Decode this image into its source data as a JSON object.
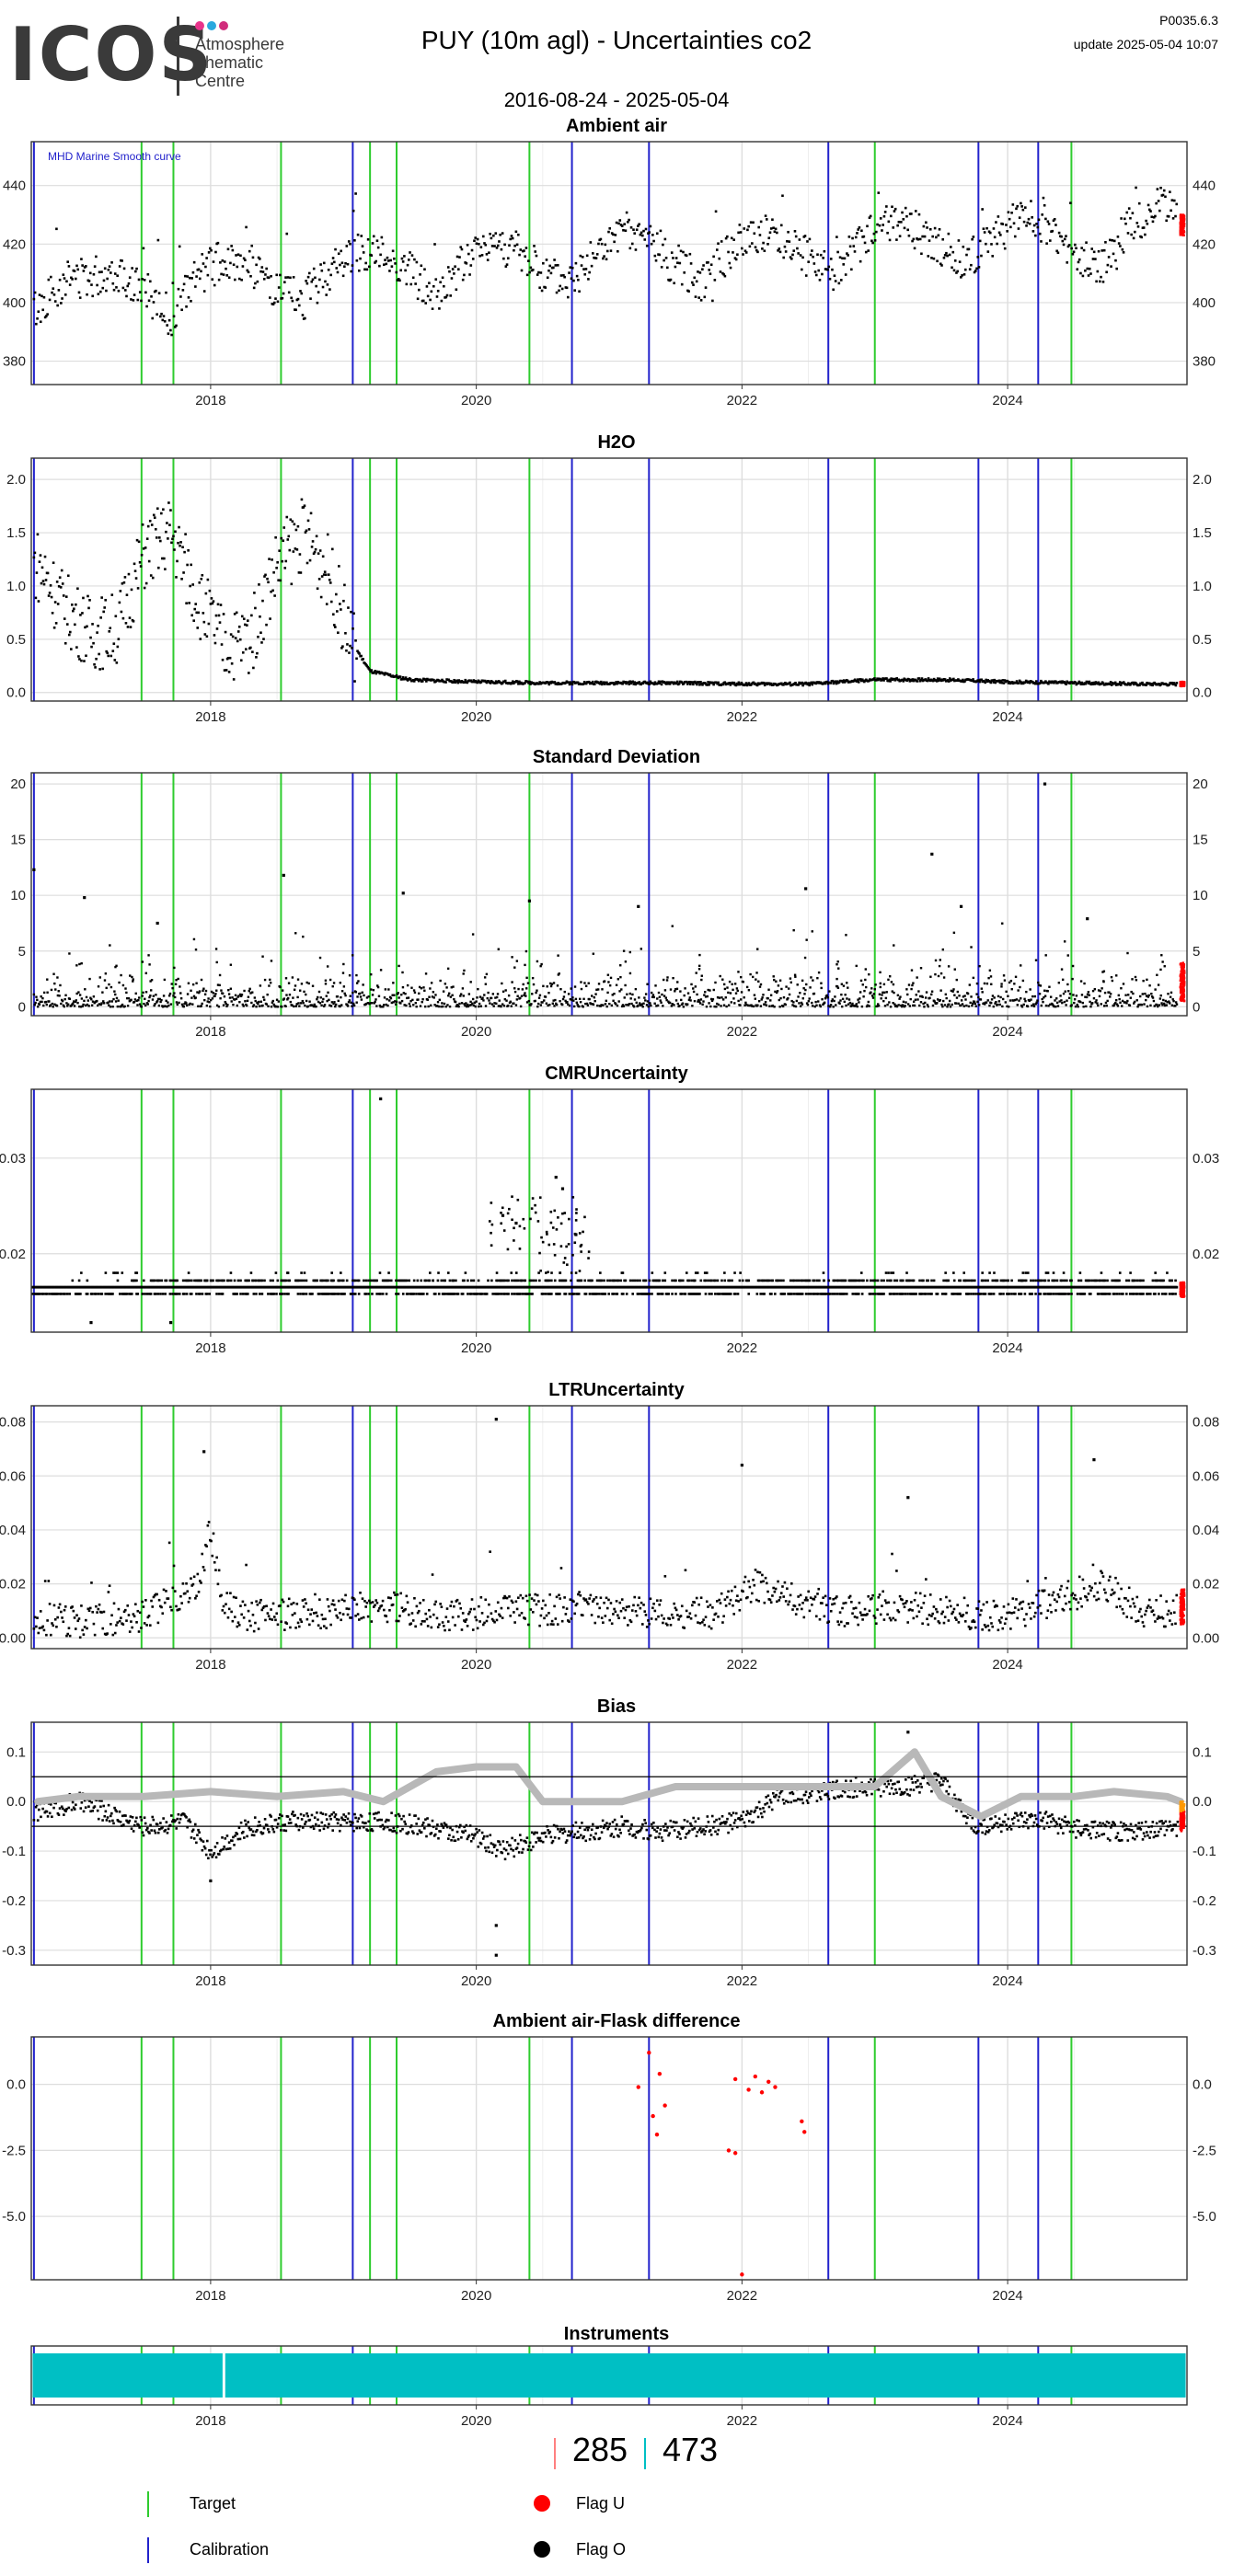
{
  "logo": {
    "wordmark": "ICOS",
    "line1": "Atmosphere",
    "line2": "Thematic",
    "line3": "Centre",
    "dot_colors": [
      "#e8348b",
      "#2aa8de",
      "#d12c7c"
    ]
  },
  "header": {
    "title": "PUY  (10m agl) - Uncertainties co2",
    "date_range": "2016-08-24 - 2025-05-04",
    "version": "P0035.6.3",
    "update": "update  2025-05-04 10:07"
  },
  "colors": {
    "target": "#2ecc2e",
    "calibration": "#2222cc",
    "flag_u": "#ff0000",
    "flag_o": "#000000",
    "smooth": "#b8b8b8",
    "instrument": "#00bfc4",
    "recent": "#ff9900"
  },
  "events": {
    "calibration": [
      2016.67,
      2019.07,
      2020.72,
      2021.3,
      2022.65,
      2023.78,
      2024.23
    ],
    "target": [
      2017.48,
      2017.72,
      2018.53,
      2019.2,
      2019.4,
      2020.4,
      2023.0,
      2024.48
    ]
  },
  "legend": {
    "target": "Target",
    "calibration": "Calibration",
    "flag_u": "Flag U",
    "flag_o": "Flag O"
  },
  "counts": {
    "left": "285",
    "right": "473"
  },
  "chart_data": [
    {
      "title": "Ambient air",
      "type": "scatter",
      "note": "MHD Marine Smooth curve",
      "xlim": [
        2016.65,
        2025.35
      ],
      "ylim": [
        372,
        455
      ],
      "xticks": [
        2018,
        2020,
        2022,
        2024
      ],
      "xtick_labels": [
        "2018",
        "2020",
        "2022",
        "2024"
      ],
      "yticks": [
        380,
        400,
        420,
        440
      ],
      "ytick_labels": [
        "380",
        "400",
        "420",
        "440"
      ],
      "series": [
        {
          "x": [
            2016.7,
            2016.9,
            2017.1,
            2017.3,
            2017.5,
            2017.7,
            2017.9,
            2018.1,
            2018.3,
            2018.5,
            2018.7,
            2018.9,
            2019.1,
            2019.3,
            2019.5,
            2019.7,
            2019.9,
            2020.1,
            2020.3,
            2020.5,
            2020.7,
            2020.9,
            2021.1,
            2021.3,
            2021.5,
            2021.7,
            2021.9,
            2022.1,
            2022.3,
            2022.5,
            2022.7,
            2022.9,
            2023.1,
            2023.3,
            2023.5,
            2023.7,
            2023.9,
            2024.1,
            2024.3,
            2024.5,
            2024.7,
            2024.9,
            2025.1,
            2025.3
          ],
          "y": [
            398,
            408,
            409,
            411,
            404,
            395,
            409,
            415,
            413,
            403,
            401,
            411,
            418,
            416,
            411,
            401,
            413,
            421,
            418,
            409,
            407,
            417,
            422,
            422,
            412,
            408,
            417,
            424,
            422,
            415,
            411,
            421,
            427,
            425,
            418,
            414,
            423,
            429,
            426,
            415,
            412,
            425,
            432,
            434
          ]
        }
      ],
      "recent": {
        "x": [
          2025.3,
          2025.33
        ],
        "y": [
          423,
          430
        ]
      }
    },
    {
      "title": "H2O",
      "type": "scatter",
      "xlim": [
        2016.65,
        2025.35
      ],
      "ylim": [
        -0.08,
        2.2
      ],
      "xticks": [
        2018,
        2020,
        2022,
        2024
      ],
      "xtick_labels": [
        "2018",
        "2020",
        "2022",
        "2024"
      ],
      "yticks": [
        0,
        0.5,
        1,
        1.5,
        2
      ],
      "ytick_labels": [
        "0.0",
        "0.5",
        "1.0",
        "1.5",
        "2.0"
      ],
      "series": [
        {
          "x": [
            2016.7,
            2016.9,
            2017.1,
            2017.3,
            2017.5,
            2017.7,
            2017.9,
            2018.1,
            2018.3,
            2018.5,
            2018.7,
            2018.9,
            2019.05,
            2019.2,
            2019.5,
            2020.0,
            2020.5,
            2021.0,
            2021.5,
            2022.0,
            2022.5,
            2023.0,
            2023.5,
            2024.0,
            2024.5,
            2025.0,
            2025.3
          ],
          "y": [
            1.2,
            0.8,
            0.55,
            0.6,
            1.3,
            1.5,
            0.9,
            0.45,
            0.5,
            1.2,
            1.5,
            1.1,
            0.5,
            0.2,
            0.12,
            0.1,
            0.09,
            0.09,
            0.09,
            0.08,
            0.08,
            0.12,
            0.12,
            0.1,
            0.09,
            0.08,
            0.08
          ]
        }
      ],
      "recent": {
        "x": [
          2025.3,
          2025.33
        ],
        "y": [
          0.06,
          0.1
        ]
      }
    },
    {
      "title": "Standard Deviation",
      "type": "scatter",
      "xlim": [
        2016.65,
        2025.35
      ],
      "ylim": [
        -0.8,
        21
      ],
      "xticks": [
        2018,
        2020,
        2022,
        2024
      ],
      "xtick_labels": [
        "2018",
        "2020",
        "2022",
        "2024"
      ],
      "yticks": [
        0,
        5,
        10,
        15,
        20
      ],
      "ytick_labels": [
        "0",
        "5",
        "10",
        "15",
        "20"
      ],
      "series": [
        {
          "x": [
            2016.7,
            2017.5,
            2018.5,
            2019.5,
            2020.5,
            2021.5,
            2022.5,
            2023.5,
            2024.5,
            2025.3
          ],
          "y": [
            1,
            1,
            1,
            1,
            1,
            1,
            1,
            1,
            1,
            1
          ]
        }
      ],
      "outliers": {
        "x": [
          2016.67,
          2017.05,
          2017.6,
          2018.55,
          2019.45,
          2020.4,
          2021.22,
          2022.48,
          2023.43,
          2023.65,
          2024.28,
          2024.6
        ],
        "y": [
          12.3,
          9.8,
          7.5,
          11.8,
          10.2,
          9.5,
          9.0,
          10.6,
          13.7,
          9.0,
          20.0,
          7.9
        ]
      },
      "recent": {
        "x": [
          2025.3,
          2025.33
        ],
        "y": [
          0.5,
          4.0
        ]
      }
    },
    {
      "title": "CMRUncertainty",
      "type": "scatter",
      "xlim": [
        2016.65,
        2025.35
      ],
      "ylim": [
        0.0118,
        0.0372
      ],
      "xticks": [
        2018,
        2020,
        2022,
        2024
      ],
      "xtick_labels": [
        "2018",
        "2020",
        "2022",
        "2024"
      ],
      "yticks": [
        0.02,
        0.03
      ],
      "ytick_labels": [
        "0.02",
        "0.03"
      ],
      "levels": [
        0.0158,
        0.0165,
        0.0172
      ],
      "series": [
        {
          "x": [
            2016.7,
            2025.3
          ],
          "y": [
            0.0165,
            0.0165
          ]
        }
      ],
      "outliers": {
        "x": [
          2017.1,
          2017.7,
          2019.28,
          2020.2,
          2020.3,
          2020.6,
          2020.65,
          2020.75
        ],
        "y": [
          0.0128,
          0.0128,
          0.0362,
          0.024,
          0.0232,
          0.028,
          0.0268,
          0.022
        ]
      },
      "recent": {
        "x": [
          2025.3,
          2025.33
        ],
        "y": [
          0.0155,
          0.017
        ]
      }
    },
    {
      "title": "LTRUncertainty",
      "type": "scatter",
      "xlim": [
        2016.65,
        2025.35
      ],
      "ylim": [
        -0.004,
        0.086
      ],
      "xticks": [
        2018,
        2020,
        2022,
        2024
      ],
      "xtick_labels": [
        "2018",
        "2020",
        "2022",
        "2024"
      ],
      "yticks": [
        0,
        0.02,
        0.04,
        0.06,
        0.08
      ],
      "ytick_labels": [
        "0.00",
        "0.02",
        "0.04",
        "0.06",
        "0.08"
      ],
      "series": [
        {
          "x": [
            2016.7,
            2017.0,
            2017.5,
            2017.9,
            2018.0,
            2018.1,
            2018.3,
            2018.8,
            2019.3,
            2019.8,
            2020.3,
            2020.8,
            2021.3,
            2021.8,
            2022.1,
            2022.3,
            2022.8,
            2023.2,
            2023.5,
            2024.0,
            2024.5,
            2024.7,
            2025.0,
            2025.3
          ],
          "y": [
            0.007,
            0.006,
            0.008,
            0.02,
            0.04,
            0.012,
            0.008,
            0.009,
            0.012,
            0.008,
            0.01,
            0.011,
            0.009,
            0.009,
            0.02,
            0.015,
            0.01,
            0.012,
            0.01,
            0.008,
            0.016,
            0.02,
            0.01,
            0.01
          ]
        }
      ],
      "outliers": {
        "x": [
          2017.95,
          2020.15,
          2022.0,
          2023.25,
          2024.65
        ],
        "y": [
          0.069,
          0.081,
          0.064,
          0.052,
          0.066
        ]
      },
      "recent": {
        "x": [
          2025.3,
          2025.33
        ],
        "y": [
          0.005,
          0.018
        ]
      }
    },
    {
      "title": "Bias",
      "type": "scatter",
      "xlim": [
        2016.65,
        2025.35
      ],
      "ylim": [
        -0.33,
        0.16
      ],
      "xticks": [
        2018,
        2020,
        2022,
        2024
      ],
      "xtick_labels": [
        "2018",
        "2020",
        "2022",
        "2024"
      ],
      "yticks": [
        -0.3,
        -0.2,
        -0.1,
        0,
        0.1
      ],
      "ytick_labels": [
        "-0.3",
        "-0.2",
        "-0.1",
        "0.0",
        "0.1"
      ],
      "hlines": [
        0.05,
        -0.05
      ],
      "series": [
        {
          "x": [
            2016.7,
            2017.0,
            2017.3,
            2017.5,
            2017.8,
            2018.0,
            2018.3,
            2018.6,
            2019.0,
            2019.3,
            2019.6,
            2020.0,
            2020.2,
            2020.5,
            2020.8,
            2021.1,
            2021.4,
            2021.7,
            2022.0,
            2022.3,
            2022.6,
            2022.9,
            2023.2,
            2023.5,
            2023.75,
            2024.0,
            2024.3,
            2024.6,
            2025.0,
            2025.3
          ],
          "y": [
            -0.02,
            0.0,
            -0.03,
            -0.05,
            -0.04,
            -0.1,
            -0.05,
            -0.04,
            -0.04,
            -0.04,
            -0.05,
            -0.07,
            -0.1,
            -0.07,
            -0.06,
            -0.05,
            -0.06,
            -0.05,
            -0.04,
            0.01,
            0.02,
            0.03,
            0.03,
            0.04,
            -0.05,
            -0.04,
            -0.04,
            -0.06,
            -0.06,
            -0.05
          ]
        }
      ],
      "smooth": {
        "x": [
          2016.7,
          2017.0,
          2017.5,
          2018.0,
          2018.5,
          2019.0,
          2019.3,
          2019.7,
          2020.0,
          2020.3,
          2020.5,
          2020.8,
          2021.1,
          2021.5,
          2022.0,
          2022.5,
          2023.0,
          2023.3,
          2023.5,
          2023.8,
          2024.1,
          2024.5,
          2024.8,
          2025.2,
          2025.3
        ],
        "y": [
          0.0,
          0.01,
          0.01,
          0.02,
          0.01,
          0.02,
          0.0,
          0.06,
          0.07,
          0.07,
          0.0,
          0.0,
          0.0,
          0.03,
          0.03,
          0.03,
          0.03,
          0.1,
          0.01,
          -0.03,
          0.01,
          0.01,
          0.02,
          0.01,
          0.0
        ]
      },
      "outliers": {
        "x": [
          2020.15,
          2020.15,
          2018.0,
          2023.25
        ],
        "y": [
          -0.31,
          -0.25,
          -0.16,
          0.14
        ]
      },
      "recent": {
        "x": [
          2025.3,
          2025.33
        ],
        "y": [
          -0.06,
          0.0
        ]
      }
    },
    {
      "title": "Ambient air-Flask difference",
      "type": "scatter",
      "xlim": [
        2016.65,
        2025.35
      ],
      "ylim": [
        -7.4,
        1.8
      ],
      "xticks": [
        2018,
        2020,
        2022,
        2024
      ],
      "xtick_labels": [
        "2018",
        "2020",
        "2022",
        "2024"
      ],
      "yticks": [
        -5,
        -2.5,
        0
      ],
      "ytick_labels": [
        "-5.0",
        "-2.5",
        "0.0"
      ],
      "series": [
        {
          "x": [
            2021.22,
            2021.3,
            2021.33,
            2021.36,
            2021.38,
            2021.42,
            2021.95,
            2022.0,
            2022.05,
            2022.1,
            2022.15,
            2022.2,
            2022.25,
            2022.45,
            2022.47,
            2021.9,
            2021.95
          ],
          "y": [
            -0.1,
            1.2,
            -1.2,
            -1.9,
            0.4,
            -0.8,
            0.2,
            -7.2,
            -0.2,
            0.3,
            -0.3,
            0.1,
            -0.1,
            -1.4,
            -1.8,
            -2.5,
            -2.6
          ]
        }
      ]
    },
    {
      "title": "Instruments",
      "type": "bar",
      "xlim": [
        2016.65,
        2025.35
      ],
      "xticks": [
        2018,
        2020,
        2022,
        2024
      ],
      "xtick_labels": [
        "2018",
        "2020",
        "2022",
        "2024"
      ],
      "segments": [
        {
          "start": 2016.66,
          "end": 2018.09
        },
        {
          "start": 2018.11,
          "end": 2025.34
        }
      ]
    }
  ]
}
